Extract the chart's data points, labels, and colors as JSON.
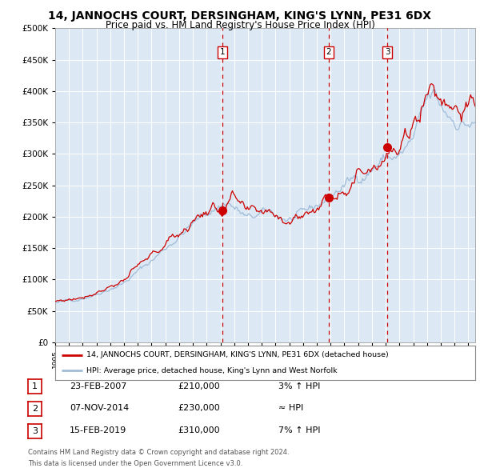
{
  "title": "14, JANNOCHS COURT, DERSINGHAM, KING'S LYNN, PE31 6DX",
  "subtitle": "Price paid vs. HM Land Registry's House Price Index (HPI)",
  "ylim": [
    0,
    500000
  ],
  "yticks": [
    0,
    50000,
    100000,
    150000,
    200000,
    250000,
    300000,
    350000,
    400000,
    450000,
    500000
  ],
  "ytick_labels": [
    "£0",
    "£50K",
    "£100K",
    "£150K",
    "£200K",
    "£250K",
    "£300K",
    "£350K",
    "£400K",
    "£450K",
    "£500K"
  ],
  "plot_bg_color": "#dce9f5",
  "red_line_color": "#cc0000",
  "blue_line_color": "#a0bcd8",
  "sale_marker_color": "#cc0000",
  "vline_color": "#cc0000",
  "grid_color": "#ffffff",
  "legend_label_red": "14, JANNOCHS COURT, DERSINGHAM, KING'S LYNN, PE31 6DX (detached house)",
  "legend_label_blue": "HPI: Average price, detached house, King's Lynn and West Norfolk",
  "sale1_date": "23-FEB-2007",
  "sale1_price": 210000,
  "sale1_hpi": "3% ↑ HPI",
  "sale1_year": 2007.14,
  "sale2_date": "07-NOV-2014",
  "sale2_price": 230000,
  "sale2_hpi": "≈ HPI",
  "sale2_year": 2014.85,
  "sale3_date": "15-FEB-2019",
  "sale3_price": 310000,
  "sale3_hpi": "7% ↑ HPI",
  "sale3_year": 2019.12,
  "footer1": "Contains HM Land Registry data © Crown copyright and database right 2024.",
  "footer2": "This data is licensed under the Open Government Licence v3.0.",
  "title_fontsize": 10,
  "subtitle_fontsize": 8.5,
  "xstart": 1995,
  "xend": 2025.5
}
